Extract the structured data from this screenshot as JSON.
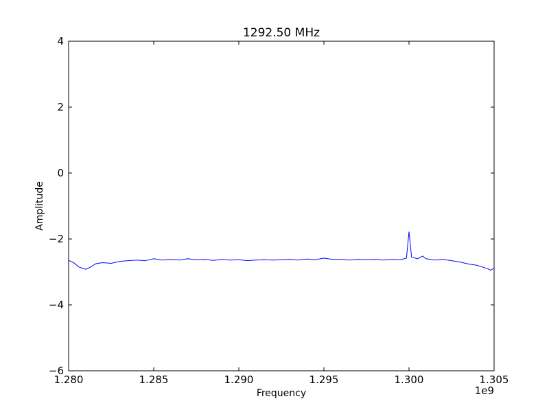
{
  "chart_data": {
    "type": "line",
    "title": "1292.50 MHz",
    "xlabel": "Frequency",
    "ylabel": "Amplitude",
    "x_offset_label": "1e9",
    "xlim": [
      1.28,
      1.305
    ],
    "ylim": [
      -6,
      4
    ],
    "x_ticks": [
      1.28,
      1.285,
      1.29,
      1.295,
      1.3,
      1.305
    ],
    "x_tick_labels": [
      "1.280",
      "1.285",
      "1.290",
      "1.295",
      "1.300",
      "1.305"
    ],
    "y_ticks": [
      -6,
      -4,
      -2,
      0,
      2,
      4
    ],
    "y_tick_labels": [
      "−6",
      "−4",
      "−2",
      "0",
      "2",
      "4"
    ],
    "grid": false,
    "series": [
      {
        "color": "#0000ff",
        "x": [
          1.28,
          1.2803,
          1.2806,
          1.281,
          1.2813,
          1.2816,
          1.282,
          1.2825,
          1.283,
          1.2835,
          1.284,
          1.2845,
          1.285,
          1.2855,
          1.286,
          1.2865,
          1.287,
          1.2875,
          1.288,
          1.2885,
          1.289,
          1.2895,
          1.29,
          1.2905,
          1.291,
          1.2915,
          1.292,
          1.2925,
          1.293,
          1.2935,
          1.294,
          1.2945,
          1.295,
          1.2955,
          1.296,
          1.2965,
          1.297,
          1.2975,
          1.298,
          1.2985,
          1.299,
          1.2995,
          1.29985,
          1.3,
          1.30015,
          1.3005,
          1.3008,
          1.301,
          1.3015,
          1.302,
          1.3025,
          1.303,
          1.3035,
          1.304,
          1.3043,
          1.3046,
          1.3048,
          1.305
        ],
        "y": [
          -2.65,
          -2.72,
          -2.85,
          -2.92,
          -2.85,
          -2.75,
          -2.72,
          -2.74,
          -2.68,
          -2.66,
          -2.64,
          -2.66,
          -2.6,
          -2.64,
          -2.62,
          -2.64,
          -2.6,
          -2.63,
          -2.62,
          -2.65,
          -2.62,
          -2.64,
          -2.63,
          -2.66,
          -2.64,
          -2.63,
          -2.64,
          -2.63,
          -2.62,
          -2.64,
          -2.61,
          -2.63,
          -2.58,
          -2.62,
          -2.62,
          -2.64,
          -2.62,
          -2.63,
          -2.62,
          -2.64,
          -2.62,
          -2.63,
          -2.58,
          -1.78,
          -2.55,
          -2.6,
          -2.52,
          -2.6,
          -2.64,
          -2.62,
          -2.66,
          -2.7,
          -2.76,
          -2.8,
          -2.85,
          -2.9,
          -2.95,
          -2.88
        ]
      }
    ]
  }
}
